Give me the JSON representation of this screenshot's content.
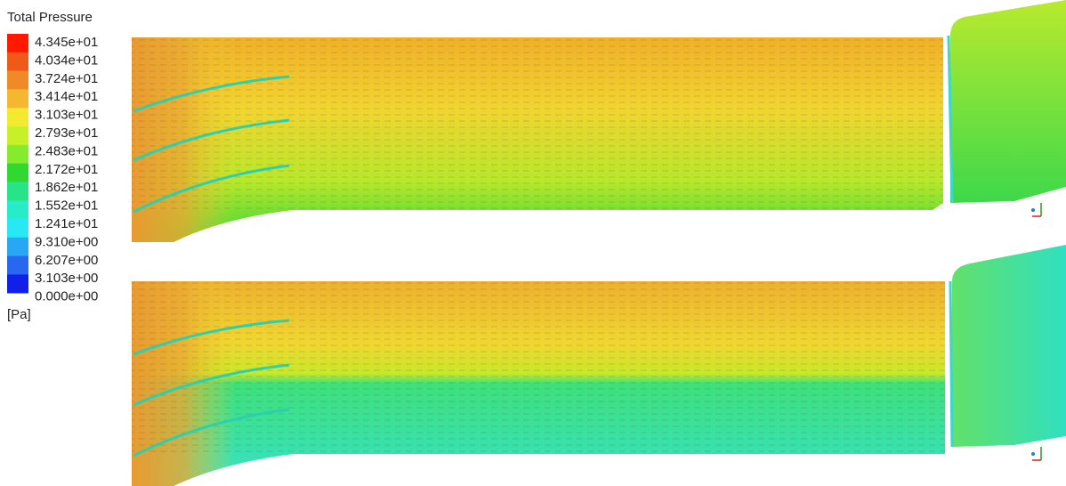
{
  "legend": {
    "title": "Total Pressure",
    "labels": [
      "4.345e+01",
      "4.034e+01",
      "3.724e+01",
      "3.414e+01",
      "3.103e+01",
      "2.793e+01",
      "2.483e+01",
      "2.172e+01",
      "1.862e+01",
      "1.552e+01",
      "1.241e+01",
      "9.310e+00",
      "6.207e+00",
      "3.103e+00",
      "0.000e+00"
    ],
    "unit": "[Pa]"
  }
}
